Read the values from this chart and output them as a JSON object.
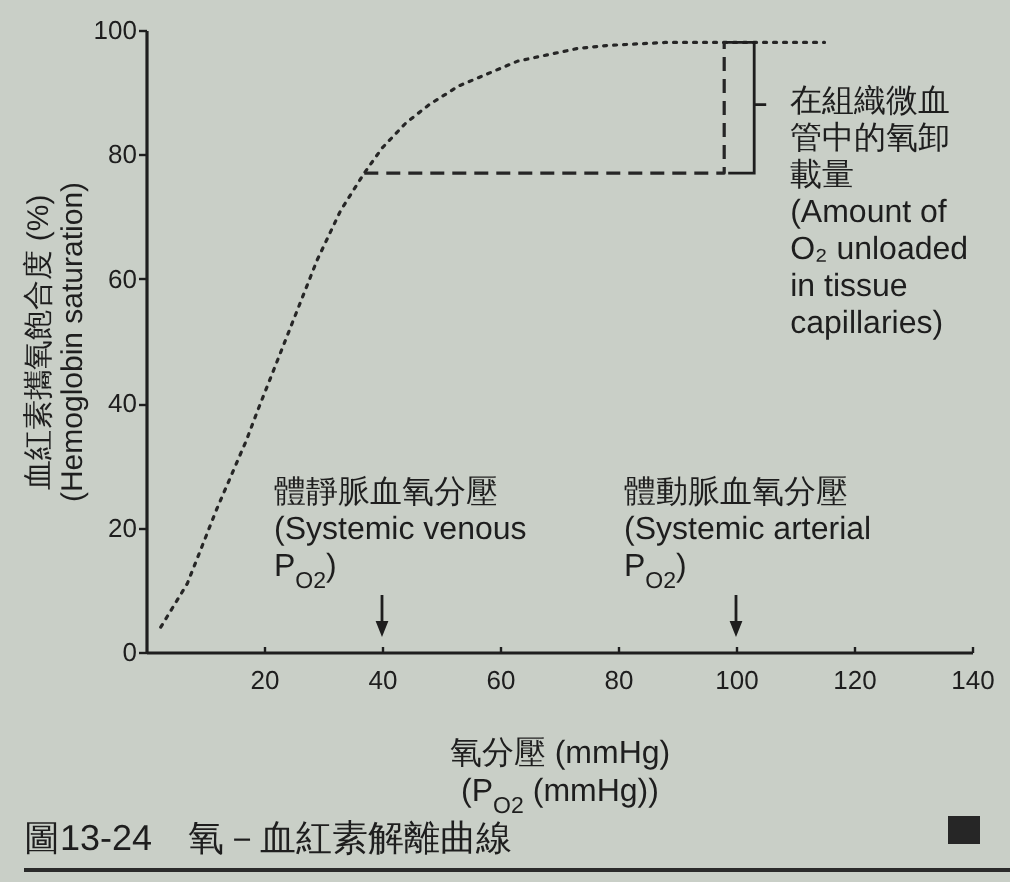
{
  "chart_data": {
    "type": "line",
    "title": "圖13-24　氧－血紅素解離曲線",
    "xlabel": "氧分壓 (mmHg)\n(P$_{O2}$ (mmHg))",
    "ylabel": "血紅素攜氧飽合度 (%)\n(Hemoglobin saturation)",
    "xlim": [
      0,
      140
    ],
    "ylim": [
      0,
      100
    ],
    "xticks": [
      20,
      40,
      60,
      80,
      100,
      120,
      140
    ],
    "yticks": [
      0,
      20,
      40,
      60,
      80,
      100
    ],
    "series": [
      {
        "color": "#262626",
        "line_style": "dotted",
        "x": [
          2.5,
          7,
          12,
          17,
          19,
          24,
          29,
          33,
          37,
          40,
          44,
          48,
          53,
          58,
          63,
          68,
          73,
          78,
          88,
          100,
          115
        ],
        "values": [
          4,
          11,
          23,
          34,
          39,
          51,
          63,
          71,
          77,
          81,
          85,
          88,
          91,
          93,
          95,
          96,
          97,
          97.5,
          98,
          98,
          98
        ]
      },
      {
        "color": "#262626",
        "line_style": "dashed",
        "x": [
          37,
          98,
          98
        ],
        "values": [
          77,
          77,
          98
        ]
      }
    ],
    "annotations": [
      "體靜脈血氧分壓\n(Systemic venous\nP$_{O2}$)",
      "體動脈血氧分壓\n(Systemic arterial\nP$_{O2}$)",
      {
        "text": "在組織微血管中的氧卸載量\n(Amount of\nO₂ unloaded\nin tissue\ncapillaries)",
        "x": 98,
        "y": 88
      }
    ]
  }
}
